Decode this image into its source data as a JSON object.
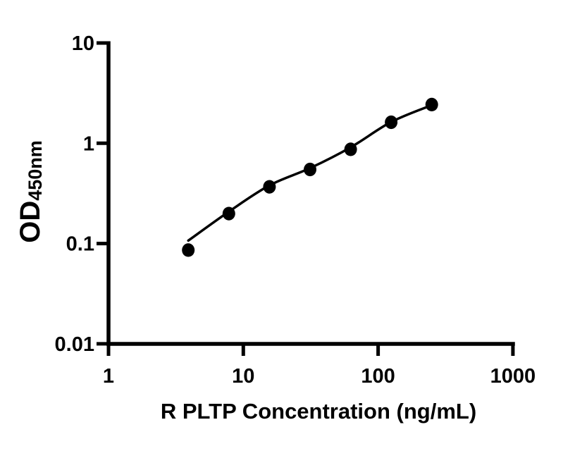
{
  "figure": {
    "background_color": "#ffffff",
    "axis_color": "#000000",
    "point_color": "#000000",
    "curve_color": "#000000"
  },
  "chart_data": {
    "type": "scatter",
    "title": "",
    "xlabel": "R PLTP Concentration (ng/mL)",
    "ylabel_main": "OD",
    "ylabel_sub": "450nm",
    "x_scale": "log",
    "y_scale": "log",
    "xlim": [
      1,
      1000
    ],
    "ylim": [
      0.01,
      10
    ],
    "x_ticks": [
      1,
      10,
      100,
      1000
    ],
    "x_tick_labels": [
      "1",
      "10",
      "100",
      "1000"
    ],
    "y_ticks": [
      10,
      1,
      0.1,
      0.01
    ],
    "y_tick_labels": [
      "10",
      "1",
      "0.1",
      "0.01"
    ],
    "grid": false,
    "legend": null,
    "series": [
      {
        "name": "standard-points",
        "type": "scatter",
        "marker": "filled-circle",
        "x": [
          3.906,
          7.813,
          15.625,
          31.25,
          62.5,
          125,
          250
        ],
        "y": [
          0.086,
          0.199,
          0.368,
          0.548,
          0.87,
          1.62,
          2.43
        ]
      },
      {
        "name": "fitted-curve",
        "type": "line",
        "x": [
          3.906,
          7.813,
          15.625,
          31.25,
          62.5,
          125,
          250
        ],
        "y": [
          0.107,
          0.208,
          0.38,
          0.565,
          0.91,
          1.63,
          2.4
        ]
      }
    ]
  }
}
